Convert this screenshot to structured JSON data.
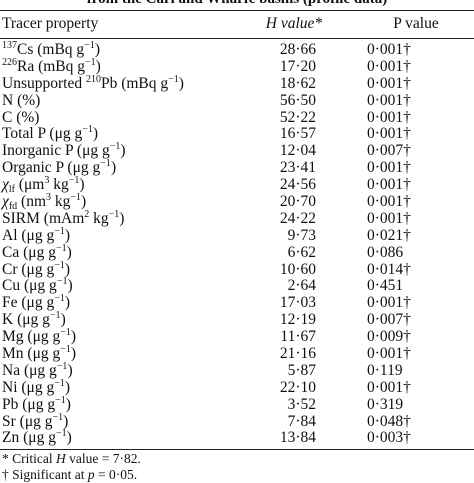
{
  "caption_fragment": "from the Carl and Wharfe basins (profile data)",
  "header": {
    "col1": "Tracer property",
    "col2": "H value*",
    "col3": "P value"
  },
  "rows": [
    {
      "pre": "",
      "sup": "137",
      "mid": "Cs (mBq g",
      "sup2": "−1",
      "post": ")",
      "h": "28·66",
      "p": "0·001†"
    },
    {
      "pre": "",
      "sup": "226",
      "mid": "Ra (mBq g",
      "sup2": "−1",
      "post": ")",
      "h": "17·20",
      "p": "0·001†"
    },
    {
      "pre": "Unsupported ",
      "sup": "210",
      "mid": "Pb (mBq g",
      "sup2": "−1",
      "post": ")",
      "h": "18·62",
      "p": "0·001†"
    },
    {
      "pre": "N (%)",
      "h": "56·50",
      "p": "0·001†"
    },
    {
      "pre": "C (%)",
      "h": "52·22",
      "p": "0·001†"
    },
    {
      "pre": "Total P (μg g",
      "sup2": "−1",
      "post": ")",
      "h": "16·57",
      "p": "0·001†"
    },
    {
      "pre": "Inorganic P (μg g",
      "sup2": "−1",
      "post": ")",
      "h": "12·04",
      "p": "0·007†"
    },
    {
      "pre": "Organic P (μg g",
      "sup2": "−1",
      "post": ")",
      "h": "23·41",
      "p": "0·001†"
    },
    {
      "chi": "χ",
      "sub": "lf",
      "mid": " (μm",
      "sup": "3",
      "post": " kg",
      "sup2": "−1",
      "post2": ")",
      "h": "24·56",
      "p": "0·001†"
    },
    {
      "chi": "χ",
      "sub": "fd",
      "mid": " (nm",
      "sup": "3",
      "post": " kg",
      "sup2": "−1",
      "post2": ")",
      "h": "20·70",
      "p": "0·001†"
    },
    {
      "pre": "SIRM (mAm",
      "sup": "2",
      "mid": " kg",
      "sup2": "−1",
      "post": ")",
      "h": "24·22",
      "p": "0·001†"
    },
    {
      "pre": "Al (μg g",
      "sup2": "−1",
      "post": ")",
      "h": "9·73",
      "p": "0·021†"
    },
    {
      "pre": "Ca (μg g",
      "sup2": "−1",
      "post": ")",
      "h": "6·62",
      "p": "0·086"
    },
    {
      "pre": "Cr (μg g",
      "sup2": "−1",
      "post": ")",
      "h": "10·60",
      "p": "0·014†"
    },
    {
      "pre": "Cu (μg g",
      "sup2": "−1",
      "post": ")",
      "h": "2·64",
      "p": "0·451"
    },
    {
      "pre": "Fe (μg g",
      "sup2": "−1",
      "post": ")",
      "h": "17·03",
      "p": "0·001†"
    },
    {
      "pre": "K (μg g",
      "sup2": "−1",
      "post": ")",
      "h": "12·19",
      "p": "0·007†"
    },
    {
      "pre": "Mg (μg g",
      "sup2": "−1",
      "post": ")",
      "h": "11·67",
      "p": "0·009†"
    },
    {
      "pre": "Mn (μg g",
      "sup2": "−1",
      "post": ")",
      "h": "21·16",
      "p": "0·001†"
    },
    {
      "pre": "Na (μg g",
      "sup2": "−1",
      "post": ")",
      "h": "5·87",
      "p": "0·119"
    },
    {
      "pre": "Ni (μg g",
      "sup2": "−1",
      "post": ")",
      "h": "22·10",
      "p": "0·001†"
    },
    {
      "pre": "Pb (μg g",
      "sup2": "−1",
      "post": ")",
      "h": "3·52",
      "p": "0·319"
    },
    {
      "pre": "Sr (μg g",
      "sup2": "−1",
      "post": ")",
      "h": "7·84",
      "p": "0·048†"
    },
    {
      "pre": "Zn (μg g",
      "sup2": "−1",
      "post": ")",
      "h": "13·84",
      "p": "0·003†"
    }
  ],
  "footnotes": {
    "critical_pre": "* Critical ",
    "critical_var": "H",
    "critical_post": " value = 7·82.",
    "sig_pre": "† Significant at ",
    "sig_var": "p",
    "sig_post": " = 0·05."
  }
}
